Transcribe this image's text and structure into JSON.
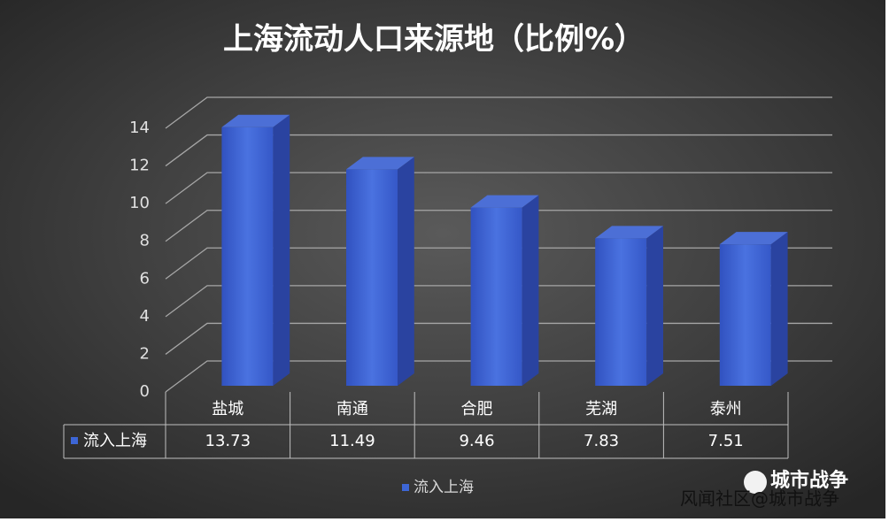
{
  "chart_data": {
    "type": "bar3d",
    "title": "上海流动人口来源地（比例%）",
    "categories": [
      "盐城",
      "南通",
      "合肥",
      "芜湖",
      "泰州"
    ],
    "series": [
      {
        "name": "流入上海",
        "color": "#3d66d6",
        "values": [
          13.73,
          11.49,
          9.46,
          7.83,
          7.51
        ]
      }
    ],
    "ylim": [
      0,
      14
    ],
    "yticks": [
      0,
      2,
      4,
      6,
      8,
      10,
      12,
      14
    ],
    "grid": true,
    "legend": "bottom",
    "data_table": true
  },
  "watermark": {
    "badge": "城市战争",
    "source": "风闻社区@城市战争"
  }
}
